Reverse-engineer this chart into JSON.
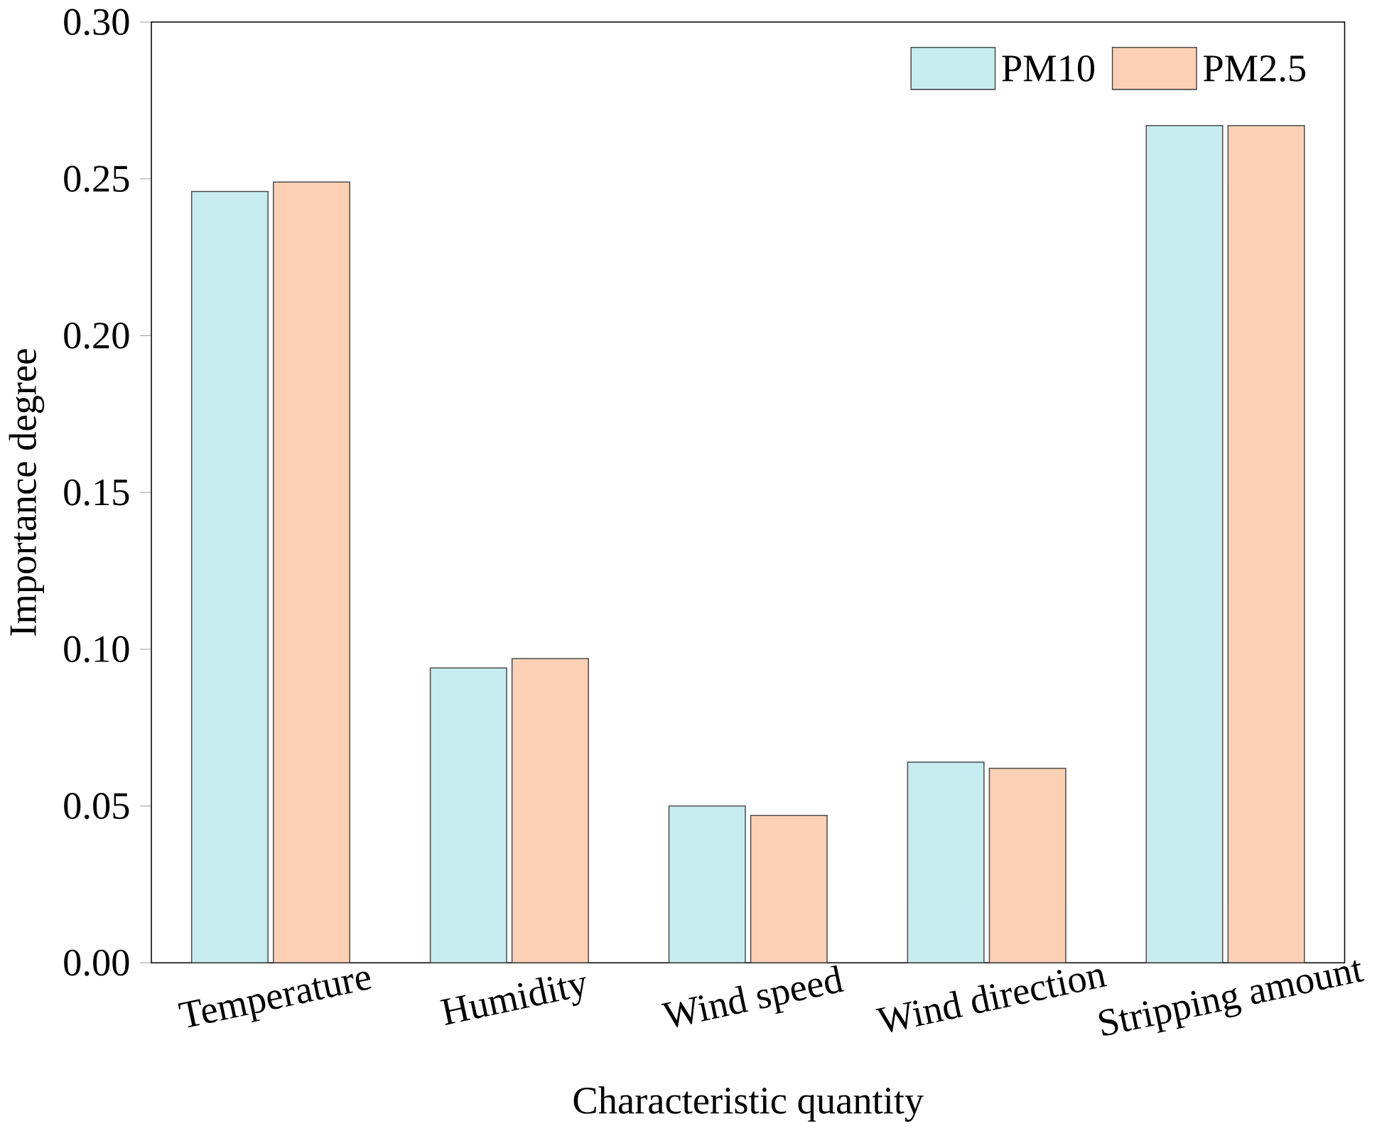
{
  "chart_data": {
    "type": "bar",
    "xlabel": "Characteristic quantity",
    "ylabel": "Importance degree",
    "categories": [
      "Temperature",
      "Humidity",
      "Wind speed",
      "Wind direction",
      "Stripping amount"
    ],
    "series": [
      {
        "name": "PM10",
        "color": "#c6ecef",
        "values": [
          0.246,
          0.094,
          0.05,
          0.064,
          0.267
        ]
      },
      {
        "name": "PM2.5",
        "color": "#fcd0b4",
        "values": [
          0.249,
          0.097,
          0.047,
          0.062,
          0.267
        ]
      }
    ],
    "ylim": [
      0,
      0.3
    ],
    "yticks": [
      {
        "value": 0,
        "label": "0.00"
      },
      {
        "value": 0.05,
        "label": "0.05"
      },
      {
        "value": 0.1,
        "label": "0.10"
      },
      {
        "value": 0.15,
        "label": "0.15"
      },
      {
        "value": 0.2,
        "label": "0.20"
      },
      {
        "value": 0.25,
        "label": "0.25"
      },
      {
        "value": 0.3,
        "label": "0.30"
      }
    ],
    "grid": false,
    "legend": "top right"
  }
}
